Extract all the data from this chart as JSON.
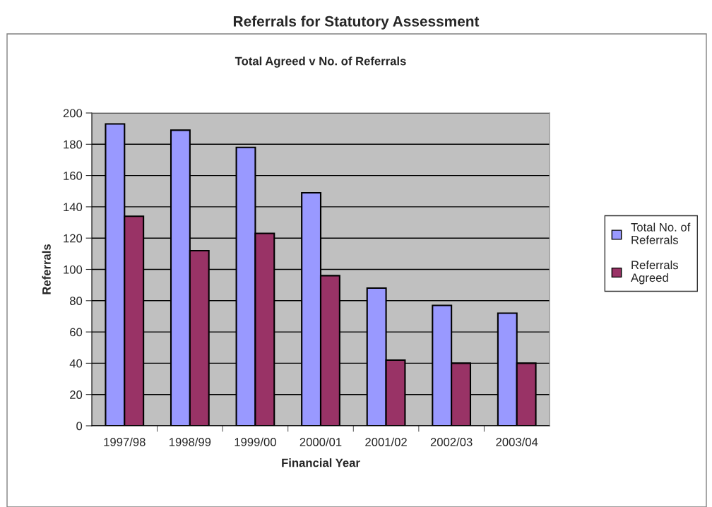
{
  "chart_data": {
    "type": "bar",
    "title": "Referrals for Statutory Assessment",
    "subtitle": "Total Agreed v No. of Referrals",
    "xlabel": "Financial Year",
    "ylabel": "Referrals",
    "categories": [
      "1997/98",
      "1998/99",
      "1999/00",
      "2000/01",
      "2001/02",
      "2002/03",
      "2003/04"
    ],
    "series": [
      {
        "name": "Total No. of Referrals",
        "color": "#9999ff",
        "values": [
          193,
          189,
          178,
          149,
          88,
          77,
          72
        ]
      },
      {
        "name": "Referrals Agreed",
        "color": "#993366",
        "values": [
          134,
          112,
          123,
          96,
          42,
          40,
          40
        ]
      }
    ],
    "ylim": [
      0,
      200
    ],
    "yticks": [
      0,
      20,
      40,
      60,
      80,
      100,
      120,
      140,
      160,
      180,
      200
    ],
    "grid": "y",
    "legend": "right"
  }
}
